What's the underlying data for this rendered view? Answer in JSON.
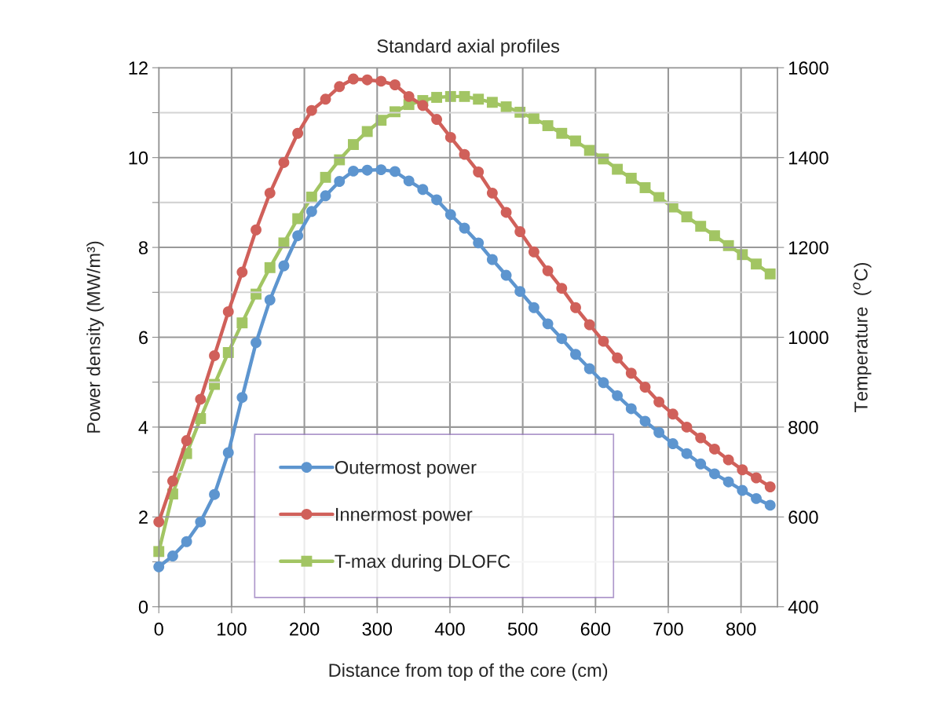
{
  "chart_data": {
    "type": "line",
    "title": "Standard axial profiles",
    "xlabel": "Distance from top of the core (cm)",
    "ylabel": "Power density (MW/m³)",
    "y2label": "Temperature  ($^{o}$C)",
    "x": [
      0,
      19.1,
      38.2,
      57.3,
      76.4,
      95.5,
      114.5,
      133.6,
      152.7,
      171.8,
      190.9,
      210.0,
      229.1,
      248.2,
      267.3,
      286.4,
      305.4,
      324.5,
      343.6,
      362.7,
      381.8,
      400.9,
      420.0,
      439.1,
      458.2,
      477.3,
      496.3,
      515.4,
      534.5,
      553.6,
      572.7,
      591.8,
      610.9,
      630.0,
      649.1,
      668.2,
      687.2,
      706.3,
      725.4,
      744.5,
      763.6,
      782.7,
      801.8,
      820.9,
      840.0
    ],
    "series": [
      {
        "name": "Outermost power",
        "color": "#5d95cf",
        "marker": "circle",
        "values": [
          0.89,
          1.13,
          1.45,
          1.89,
          2.5,
          3.43,
          4.66,
          5.88,
          6.83,
          7.59,
          8.26,
          8.8,
          9.15,
          9.47,
          9.7,
          9.72,
          9.73,
          9.69,
          9.48,
          9.29,
          9.06,
          8.73,
          8.43,
          8.1,
          7.73,
          7.38,
          7.02,
          6.66,
          6.3,
          5.97,
          5.62,
          5.3,
          4.99,
          4.7,
          4.41,
          4.13,
          3.88,
          3.63,
          3.41,
          3.18,
          2.96,
          2.78,
          2.59,
          2.41,
          2.26
        ]
      },
      {
        "name": "Innermost power",
        "color": "#d0605a",
        "marker": "circle",
        "values": [
          1.89,
          2.8,
          3.7,
          4.62,
          5.59,
          6.57,
          7.45,
          8.39,
          9.21,
          9.89,
          10.54,
          11.05,
          11.3,
          11.58,
          11.75,
          11.73,
          11.7,
          11.62,
          11.36,
          11.16,
          10.85,
          10.45,
          10.07,
          9.68,
          9.21,
          8.78,
          8.35,
          7.9,
          7.48,
          7.09,
          6.66,
          6.28,
          5.91,
          5.54,
          5.2,
          4.89,
          4.56,
          4.29,
          4.0,
          3.76,
          3.51,
          3.27,
          3.05,
          2.87,
          2.67
        ]
      },
      {
        "name": "T-max during DLOFC",
        "color": "#a2c563",
        "marker": "square",
        "axis": "y2",
        "values": [
          523,
          651,
          741,
          819,
          895,
          966,
          1032,
          1096,
          1155,
          1210,
          1264,
          1312,
          1356,
          1395,
          1429,
          1458,
          1483,
          1502,
          1518,
          1527,
          1534,
          1536,
          1536,
          1530,
          1523,
          1513,
          1501,
          1487,
          1471,
          1454,
          1437,
          1416,
          1397,
          1374,
          1354,
          1333,
          1311,
          1290,
          1268,
          1247,
          1226,
          1204,
          1184,
          1163,
          1141
        ]
      }
    ],
    "xlim": [
      0,
      850
    ],
    "xticks": [
      0,
      100,
      200,
      300,
      400,
      500,
      600,
      700,
      800
    ],
    "ylim": [
      0,
      12
    ],
    "yticks": [
      0,
      {
        "value": 1,
        "label": null
      },
      2,
      {
        "value": 3,
        "label": null
      },
      4,
      {
        "value": 5,
        "label": null
      },
      6,
      {
        "value": 7,
        "label": null
      },
      8,
      {
        "value": 9,
        "label": null
      },
      10,
      {
        "value": 11,
        "label": null
      },
      12
    ],
    "y2lim": [
      400,
      1600
    ],
    "y2ticks": [
      400,
      600,
      800,
      1000,
      1200,
      1400,
      1600
    ],
    "grid": true,
    "legend": "bottom",
    "line_style": "solid"
  }
}
